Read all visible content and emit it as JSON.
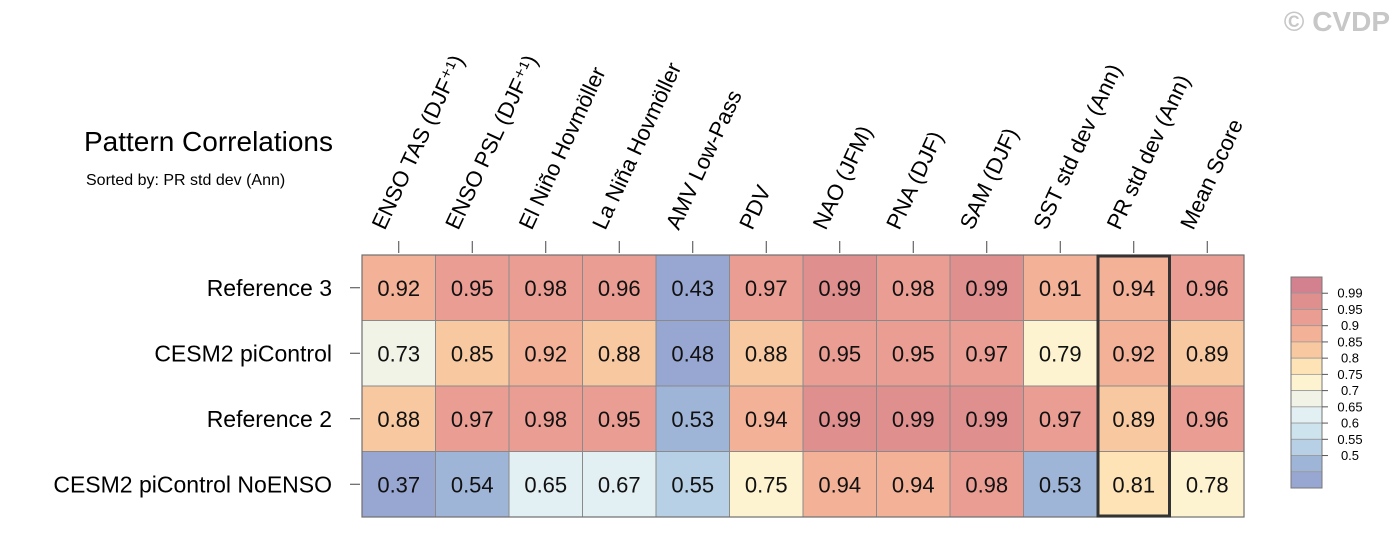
{
  "watermark": "© CVDP",
  "title": "Pattern Correlations",
  "subtitle": "Sorted by: PR std dev (Ann)",
  "chart_data": {
    "type": "heatmap",
    "columns": [
      "ENSO TAS (DJF⁺¹)",
      "ENSO PSL (DJF⁺¹)",
      "El Niño Hovmöller",
      "La Niña Hovmöller",
      "AMV Low-Pass",
      "PDV",
      "NAO (JFM)",
      "PNA (DJF)",
      "SAM (DJF)",
      "SST std dev (Ann)",
      "PR std dev (Ann)",
      "Mean Score"
    ],
    "rows": [
      {
        "name": "Reference 3",
        "values": [
          "0.92",
          "0.95",
          "0.98",
          "0.96",
          "0.43",
          "0.97",
          "0.99",
          "0.98",
          "0.99",
          "0.91",
          "0.94",
          "0.96"
        ]
      },
      {
        "name": "CESM2 piControl",
        "values": [
          "0.73",
          "0.85",
          "0.92",
          "0.88",
          "0.48",
          "0.88",
          "0.95",
          "0.95",
          "0.97",
          "0.79",
          "0.92",
          "0.89"
        ]
      },
      {
        "name": "Reference 2",
        "values": [
          "0.88",
          "0.97",
          "0.98",
          "0.95",
          "0.53",
          "0.94",
          "0.99",
          "0.99",
          "0.99",
          "0.97",
          "0.89",
          "0.96"
        ]
      },
      {
        "name": "CESM2 piControl NoENSO",
        "values": [
          "0.37",
          "0.54",
          "0.65",
          "0.67",
          "0.55",
          "0.75",
          "0.94",
          "0.94",
          "0.98",
          "0.53",
          "0.81",
          "0.78"
        ]
      }
    ],
    "highlighted_column": "PR std dev (Ann)",
    "colorbar": {
      "labels": [
        "0.99",
        "0.95",
        "0.9",
        "0.85",
        "0.8",
        "0.75",
        "0.7",
        "0.65",
        "0.6",
        "0.55",
        "0.5"
      ],
      "colors": [
        "#d3808f",
        "#e08f8f",
        "#ea9d93",
        "#f3b197",
        "#f8c9a0",
        "#fde3b5",
        "#fdf3d0",
        "#f0f3e6",
        "#e2eff3",
        "#cde3ee",
        "#b7d0e5",
        "#9fb5d8",
        "#98a7d2"
      ]
    }
  }
}
